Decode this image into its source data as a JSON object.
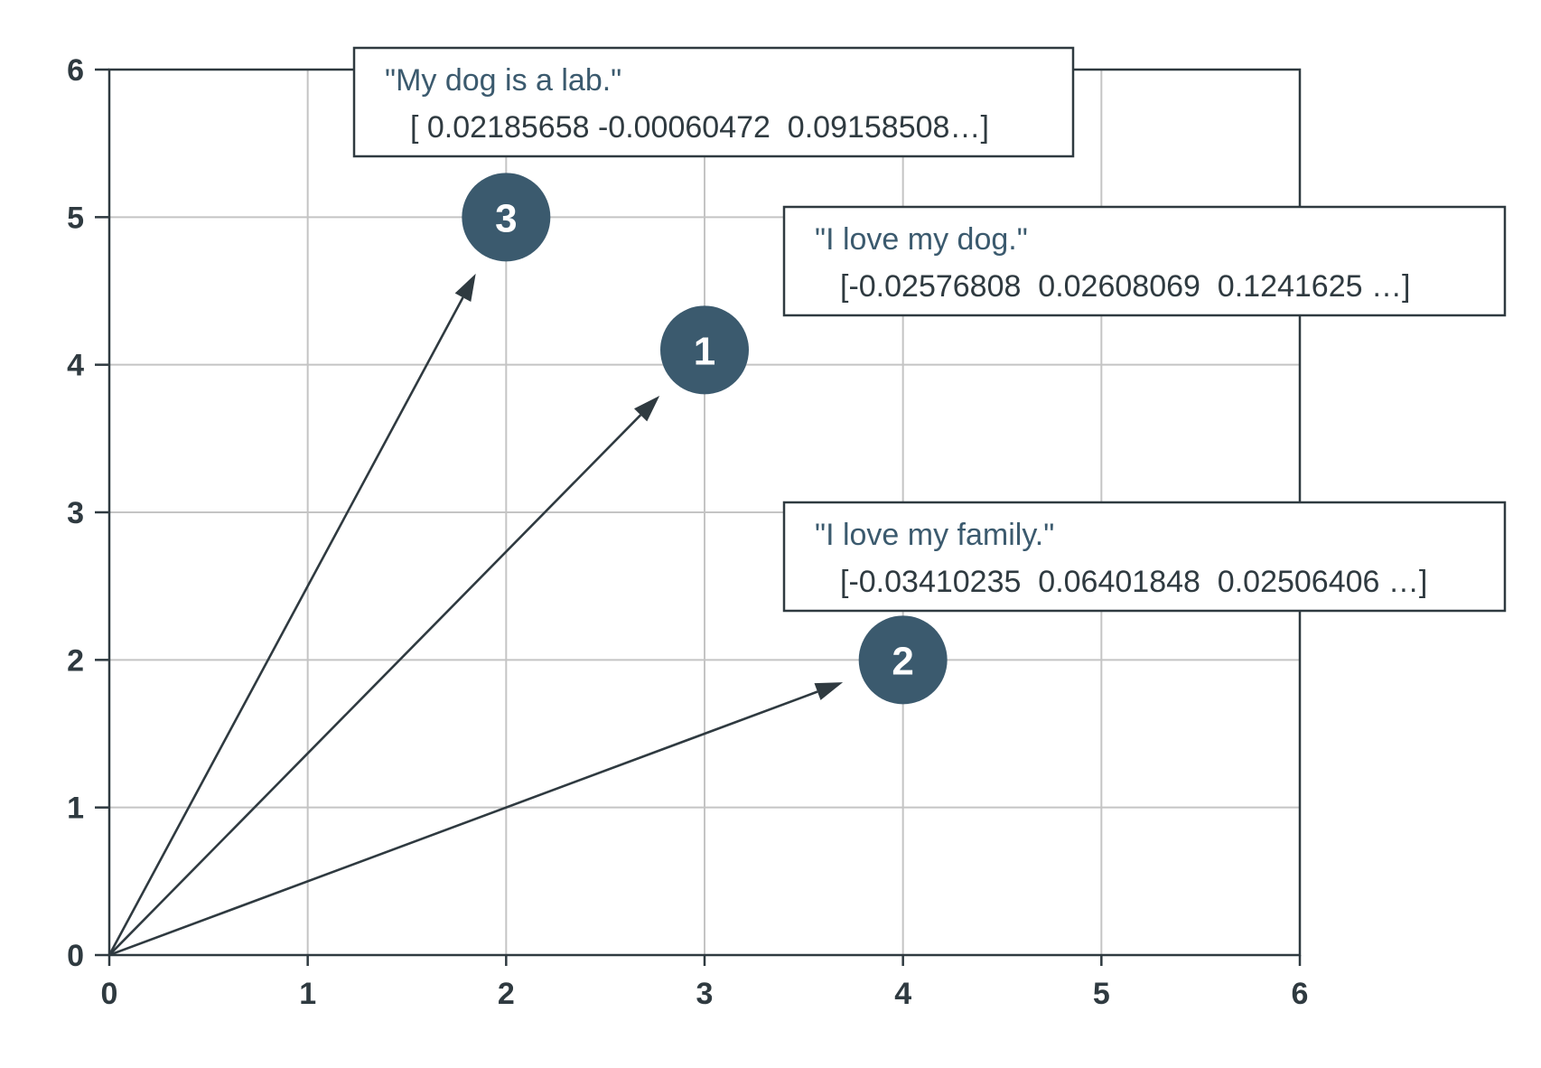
{
  "chart_data": {
    "type": "scatter",
    "title": "",
    "xlabel": "",
    "ylabel": "",
    "xlim": [
      0,
      6
    ],
    "ylim": [
      0,
      6
    ],
    "x_ticks": [
      "0",
      "1",
      "2",
      "3",
      "4",
      "5",
      "6"
    ],
    "y_ticks": [
      "0",
      "1",
      "2",
      "3",
      "4",
      "5",
      "6"
    ],
    "grid": true,
    "origin": [
      0,
      0
    ],
    "points": [
      {
        "label": "1",
        "x": 3,
        "y": 4.1,
        "sentence": "\"I love my dog.\"",
        "embedding": "[-0.02576808  0.02608069  0.1241625 …]"
      },
      {
        "label": "2",
        "x": 4,
        "y": 2,
        "sentence": "\"I love my family.\"",
        "embedding": "[-0.03410235  0.06401848  0.02506406 …]"
      },
      {
        "label": "3",
        "x": 2,
        "y": 5,
        "sentence": "\"My dog is a lab.\"",
        "embedding": "[ 0.02185658 -0.00060472  0.09158508…]"
      }
    ]
  },
  "colors": {
    "marker": "#3b5a6e",
    "sentence_text": "#3b5a6e",
    "axis": "#2f3a40",
    "grid": "#c4c4c4"
  }
}
